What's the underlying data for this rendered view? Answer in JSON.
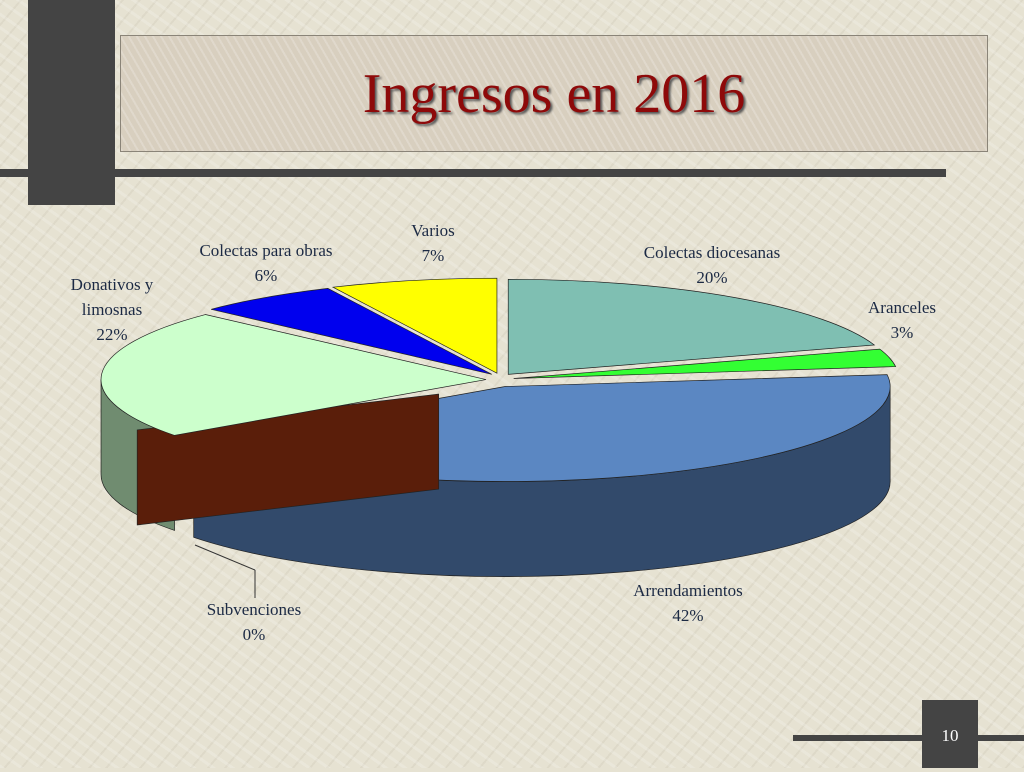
{
  "chart_data": {
    "type": "pie",
    "title": "Ingresos en 2016",
    "categories": [
      "Colectas diocesanas",
      "Aranceles",
      "Arrendamientos",
      "Subvenciones",
      "Donativos y limosnas",
      "Colectas para obras",
      "Varios"
    ],
    "values": [
      20,
      3,
      42,
      0,
      22,
      6,
      7
    ],
    "value_labels": [
      "20%",
      "3%",
      "42%",
      "0%",
      "22%",
      "6%",
      "7%"
    ],
    "colors": [
      "#7fbfb2",
      "#33ff33",
      "#5b87c2",
      "#5a1e0a",
      "#ccffcc",
      "#0000ee",
      "#ffff00"
    ]
  },
  "page_number": "10"
}
